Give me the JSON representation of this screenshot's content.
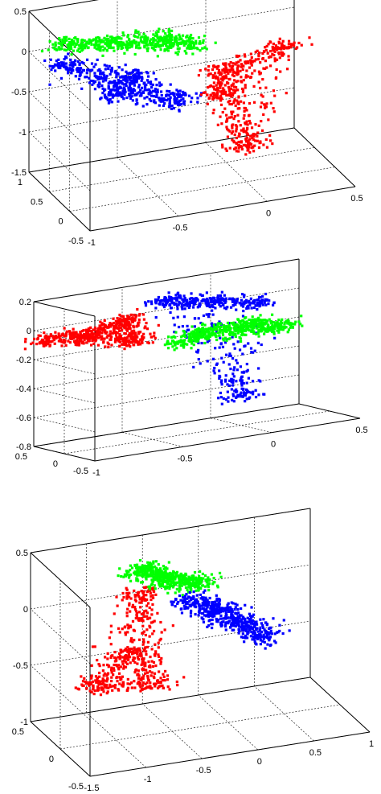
{
  "figure": {
    "background": "#ffffff",
    "series_colors": {
      "red": "#ff0000",
      "green": "#00ff00",
      "blue": "#0000ff"
    }
  },
  "chart_data": [
    {
      "type": "scatter",
      "dimensions": 3,
      "grid": true,
      "x_ticks": [
        "-1",
        "-0.5",
        "0",
        "0.5"
      ],
      "y_ticks": [
        "-0.5",
        "0",
        "0.5",
        "1"
      ],
      "z_ticks": [
        "-1.5",
        "-1",
        "-0.5",
        "0",
        "0.5"
      ],
      "xlim": [
        -1,
        0.5
      ],
      "ylim": [
        -0.5,
        1
      ],
      "zlim": [
        -1.5,
        0.5
      ],
      "series": [
        {
          "color": "#0000ff",
          "approx_points": [
            [
              -0.6,
              0.25,
              -0.1
            ],
            [
              -0.9,
              0.6,
              0.0
            ],
            [
              -0.4,
              -0.1,
              -0.3
            ],
            [
              -0.7,
              0.1,
              -0.2
            ]
          ]
        },
        {
          "color": "#00ff00",
          "approx_points": [
            [
              -0.6,
              0.8,
              0.05
            ],
            [
              -0.3,
              0.7,
              0.05
            ],
            [
              -0.85,
              0.85,
              0.1
            ],
            [
              -0.2,
              0.5,
              0.02
            ]
          ]
        },
        {
          "color": "#ff0000",
          "approx_points": [
            [
              -0.1,
              0.15,
              -0.15
            ],
            [
              0.25,
              0.2,
              0.0
            ],
            [
              -0.15,
              -0.1,
              -0.3
            ],
            [
              0.0,
              0.0,
              -1.05
            ]
          ]
        }
      ]
    },
    {
      "type": "scatter",
      "dimensions": 3,
      "grid": true,
      "x_ticks": [
        "-1",
        "-0.5",
        "0",
        "0.5"
      ],
      "y_ticks": [
        "-0.5",
        "0",
        "0.5"
      ],
      "z_ticks": [
        "-0.8",
        "-0.6",
        "-0.4",
        "-0.2",
        "0",
        "0.2"
      ],
      "xlim": [
        -1,
        0.5
      ],
      "ylim": [
        -0.5,
        0.5
      ],
      "zlim": [
        -0.8,
        0.2
      ],
      "series": [
        {
          "color": "#ff0000",
          "approx_points": [
            [
              -0.8,
              0.2,
              -0.05
            ],
            [
              -0.55,
              0.3,
              0.0
            ],
            [
              -1.0,
              0.35,
              -0.05
            ],
            [
              -0.6,
              0.0,
              -0.1
            ]
          ]
        },
        {
          "color": "#0000ff",
          "approx_points": [
            [
              -0.1,
              0.3,
              0.05
            ],
            [
              0.15,
              0.15,
              0.0
            ],
            [
              -0.3,
              0.4,
              0.08
            ],
            [
              0.0,
              0.0,
              -0.6
            ]
          ]
        },
        {
          "color": "#00ff00",
          "approx_points": [
            [
              -0.2,
              0.05,
              -0.12
            ],
            [
              0.1,
              0.05,
              -0.12
            ],
            [
              -0.35,
              -0.05,
              -0.15
            ],
            [
              0.2,
              -0.1,
              -0.15
            ]
          ]
        }
      ]
    },
    {
      "type": "scatter",
      "dimensions": 3,
      "grid": true,
      "x_ticks": [
        "-1.5",
        "-1",
        "-0.5",
        "0",
        "0.5",
        "1"
      ],
      "y_ticks": [
        "-0.5",
        "0",
        "0.5"
      ],
      "z_ticks": [
        "-1",
        "-0.5",
        "0",
        "0.5"
      ],
      "xlim": [
        -1.5,
        1
      ],
      "ylim": [
        -0.5,
        0.5
      ],
      "zlim": [
        -1,
        0.5
      ],
      "series": [
        {
          "color": "#ff0000",
          "approx_points": [
            [
              -0.8,
              0.1,
              -0.3
            ],
            [
              -0.6,
              0.3,
              0.1
            ],
            [
              -1.1,
              0.2,
              -0.6
            ],
            [
              -0.7,
              -0.1,
              -0.5
            ]
          ]
        },
        {
          "color": "#00ff00",
          "approx_points": [
            [
              -0.35,
              0.35,
              0.15
            ],
            [
              -0.1,
              0.3,
              0.1
            ],
            [
              -0.55,
              0.4,
              0.25
            ]
          ]
        },
        {
          "color": "#0000ff",
          "approx_points": [
            [
              0.0,
              0.2,
              -0.1
            ],
            [
              0.2,
              0.1,
              -0.2
            ],
            [
              0.35,
              0.0,
              -0.3
            ],
            [
              -0.2,
              0.25,
              0.0
            ]
          ]
        }
      ]
    }
  ]
}
